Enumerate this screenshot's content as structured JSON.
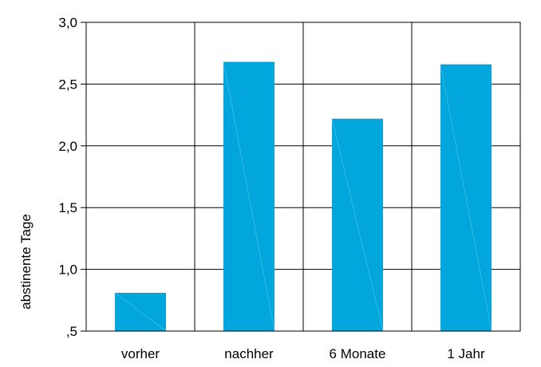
{
  "chart_data": {
    "type": "bar",
    "title": "",
    "xlabel": "",
    "ylabel": "abstinente Tage",
    "categories": [
      "vorher",
      "nachher",
      "6 Monate",
      "1 Jahr"
    ],
    "values": [
      0.81,
      2.68,
      2.22,
      2.66
    ],
    "ylim": [
      0.5,
      3.0
    ],
    "yticks": [
      0.5,
      1.0,
      1.5,
      2.0,
      2.5,
      3.0
    ],
    "ytick_labels": [
      ",5",
      "1,0",
      "1,5",
      "2,0",
      "2,5",
      "3,0"
    ],
    "grid": true,
    "bar_color": "#00a6dc",
    "legend": "none"
  }
}
